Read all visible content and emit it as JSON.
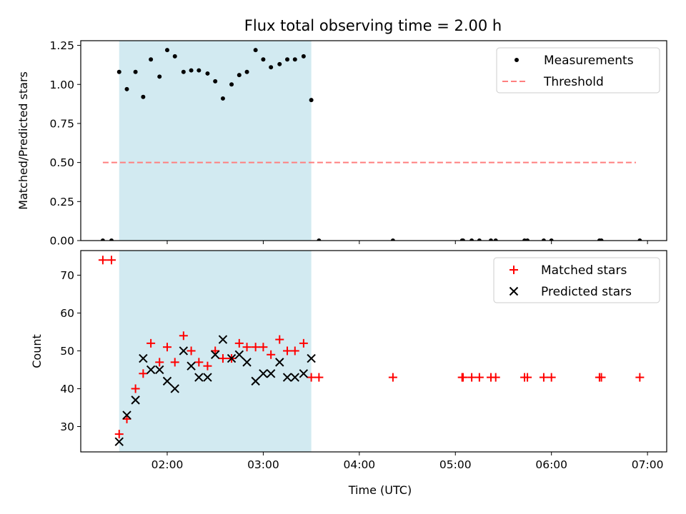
{
  "figure": {
    "title": "Flux total observing time = 2.00 h"
  },
  "chart_data": [
    {
      "type": "scatter",
      "ylabel": "Matched/Predicted stars",
      "xlabel": "",
      "x_axis": "time",
      "xlim": [
        1.1,
        7.2
      ],
      "ylim": [
        0,
        1.28
      ],
      "x_ticks": [
        2,
        3,
        4,
        5,
        6,
        7
      ],
      "y_ticks": [
        0.0,
        0.25,
        0.5,
        0.75,
        1.0,
        1.25
      ],
      "y_tick_labels": [
        "0.00",
        "0.25",
        "0.50",
        "0.75",
        "1.00",
        "1.25"
      ],
      "shaded_span": {
        "x": [
          1.5,
          3.5
        ],
        "color": "#add8e6"
      },
      "legend": {
        "placement": "top-right",
        "entries": [
          "Measurements",
          "Threshold"
        ]
      },
      "threshold": {
        "name": "Threshold",
        "y": 0.5,
        "x": [
          1.33,
          6.88
        ],
        "color": "#ff7f7f",
        "style": "dashed"
      },
      "series": [
        {
          "name": "Measurements",
          "color": "#000000",
          "marker": "dot",
          "x": [
            1.33,
            1.42,
            1.5,
            1.58,
            1.67,
            1.75,
            1.83,
            1.92,
            2.0,
            2.08,
            2.17,
            2.25,
            2.33,
            2.42,
            2.5,
            2.58,
            2.67,
            2.75,
            2.83,
            2.92,
            3.0,
            3.08,
            3.17,
            3.25,
            3.33,
            3.42,
            3.5,
            3.58,
            4.35,
            5.07,
            5.08,
            5.17,
            5.25,
            5.37,
            5.42,
            5.72,
            5.75,
            5.92,
            6.0,
            6.5,
            6.52,
            6.92
          ],
          "y": [
            0.0,
            0.0,
            1.08,
            0.97,
            1.08,
            0.92,
            1.16,
            1.05,
            1.22,
            1.18,
            1.08,
            1.09,
            1.09,
            1.07,
            1.02,
            0.91,
            1.0,
            1.06,
            1.08,
            1.22,
            1.16,
            1.11,
            1.13,
            1.16,
            1.16,
            1.18,
            0.9,
            0.0,
            0.0,
            0.0,
            0.0,
            0.0,
            0.0,
            0.0,
            0.0,
            0.0,
            0.0,
            0.0,
            0.0,
            0.0,
            0.0,
            0.0
          ]
        }
      ]
    },
    {
      "type": "scatter",
      "ylabel": "Count",
      "xlabel": "Time (UTC)",
      "x_axis": "time",
      "xlim": [
        1.1,
        7.2
      ],
      "ylim": [
        23.3,
        76.5
      ],
      "x_ticks": [
        2,
        3,
        4,
        5,
        6,
        7
      ],
      "x_tick_labels": [
        "02:00",
        "03:00",
        "04:00",
        "05:00",
        "06:00",
        "07:00"
      ],
      "y_ticks": [
        30,
        40,
        50,
        60,
        70
      ],
      "y_tick_labels": [
        "30",
        "40",
        "50",
        "60",
        "70"
      ],
      "shaded_span": {
        "x": [
          1.5,
          3.5
        ],
        "color": "#add8e6"
      },
      "legend": {
        "placement": "top-right",
        "entries": [
          "Matched stars",
          "Predicted stars"
        ]
      },
      "series": [
        {
          "name": "Matched stars",
          "color": "#ff0000",
          "marker": "plus",
          "x": [
            1.33,
            1.42,
            1.5,
            1.58,
            1.67,
            1.75,
            1.83,
            1.92,
            2.0,
            2.08,
            2.17,
            2.25,
            2.33,
            2.42,
            2.5,
            2.58,
            2.67,
            2.75,
            2.83,
            2.92,
            3.0,
            3.08,
            3.17,
            3.25,
            3.33,
            3.42,
            3.5,
            3.58,
            4.35,
            5.07,
            5.08,
            5.17,
            5.25,
            5.37,
            5.42,
            5.72,
            5.75,
            5.92,
            6.0,
            6.5,
            6.52,
            6.92
          ],
          "y": [
            74,
            74,
            28,
            32,
            40,
            44,
            52,
            47,
            51,
            47,
            54,
            50,
            47,
            46,
            50,
            48,
            48,
            52,
            51,
            51,
            51,
            49,
            53,
            50,
            50,
            52,
            43,
            43,
            43,
            43,
            43,
            43,
            43,
            43,
            43,
            43,
            43,
            43,
            43,
            43,
            43,
            43
          ]
        },
        {
          "name": "Predicted stars",
          "color": "#000000",
          "marker": "x",
          "x": [
            1.5,
            1.58,
            1.67,
            1.75,
            1.83,
            1.92,
            2.0,
            2.08,
            2.17,
            2.25,
            2.33,
            2.42,
            2.5,
            2.58,
            2.67,
            2.75,
            2.83,
            2.92,
            3.0,
            3.08,
            3.17,
            3.25,
            3.33,
            3.42,
            3.5
          ],
          "y": [
            26,
            33,
            37,
            48,
            45,
            45,
            42,
            40,
            50,
            46,
            43,
            43,
            49,
            53,
            48,
            49,
            47,
            42,
            44,
            44,
            47,
            43,
            43,
            44,
            48
          ]
        }
      ]
    }
  ]
}
